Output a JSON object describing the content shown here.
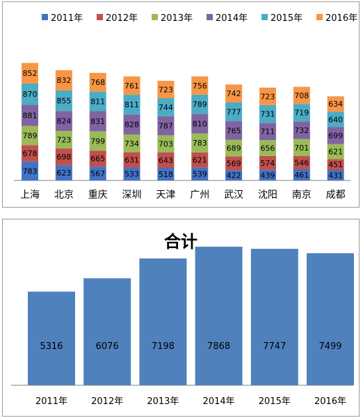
{
  "chart_data": [
    {
      "type": "bar",
      "stacked": true,
      "categories": [
        "上海",
        "北京",
        "重庆",
        "深圳",
        "天津",
        "广州",
        "武汉",
        "沈阳",
        "南京",
        "成都"
      ],
      "series": [
        {
          "name": "2011年",
          "color": "#4472c4",
          "values": [
            783,
            623,
            567,
            533,
            518,
            539,
            422,
            439,
            461,
            431
          ]
        },
        {
          "name": "2012年",
          "color": "#c0504d",
          "values": [
            678,
            698,
            665,
            631,
            643,
            621,
            569,
            574,
            546,
            451
          ]
        },
        {
          "name": "2013年",
          "color": "#9bbb59",
          "values": [
            789,
            723,
            799,
            734,
            703,
            783,
            689,
            656,
            701,
            621
          ]
        },
        {
          "name": "2014年",
          "color": "#8064a2",
          "values": [
            881,
            824,
            831,
            828,
            787,
            810,
            765,
            711,
            732,
            699
          ]
        },
        {
          "name": "2015年",
          "color": "#4bacc6",
          "values": [
            870,
            855,
            811,
            811,
            744,
            789,
            777,
            731,
            719,
            640
          ]
        },
        {
          "name": "2016年",
          "color": "#f79646",
          "values": [
            852,
            832,
            768,
            761,
            723,
            756,
            742,
            723,
            708,
            634
          ]
        }
      ],
      "legend": "top",
      "grid": false
    },
    {
      "type": "bar",
      "title": "合计",
      "categories": [
        "2011年",
        "2012年",
        "2013年",
        "2014年",
        "2015年",
        "2016年"
      ],
      "values": [
        5316,
        6076,
        7198,
        7868,
        7747,
        7499
      ],
      "color": "#4f81bd",
      "grid": false
    }
  ]
}
